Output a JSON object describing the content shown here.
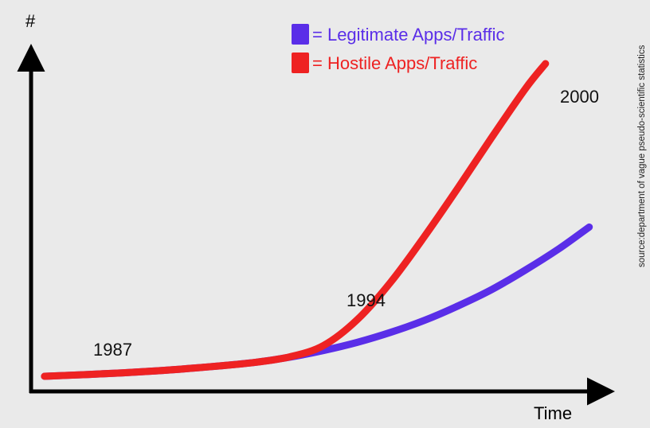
{
  "chart_data": {
    "type": "line",
    "title": "",
    "xlabel": "Time",
    "ylabel": "#",
    "xlim": [
      1985.3,
      2002.5
    ],
    "ylim": [
      0,
      100
    ],
    "grid": false,
    "legend_position": "top-right",
    "annotations": [
      "1987",
      "1994",
      "2000"
    ],
    "source_note": "source:department of vague pseudo-scientific statistics",
    "series": [
      {
        "name": "= Legitimate Apps/Traffic",
        "color": "#5a2ee8",
        "x": [
          1985.7,
          1987,
          1988,
          1989,
          1990,
          1991,
          1992,
          1993,
          1994,
          1995,
          1996,
          1997,
          1998,
          1999,
          2000,
          2001,
          2001.9
        ],
        "y": [
          0.5,
          1.1,
          1.6,
          2.2,
          3.0,
          3.9,
          5.0,
          6.6,
          8.7,
          11.3,
          14.5,
          18.3,
          22.9,
          28.1,
          34.3,
          41.1,
          48.0
        ]
      },
      {
        "name": "= Hostile Apps/Traffic",
        "color": "#ee2222",
        "x": [
          1985.7,
          1987,
          1988,
          1989,
          1990,
          1991,
          1992,
          1993,
          1994,
          1995,
          1996,
          1997,
          1998,
          1999,
          2000,
          2000.6
        ],
        "y": [
          0.5,
          1.1,
          1.6,
          2.2,
          3.0,
          3.9,
          5.0,
          6.7,
          10.3,
          18.5,
          30.5,
          45.0,
          60.5,
          76.5,
          92.0,
          100.0
        ]
      }
    ]
  }
}
